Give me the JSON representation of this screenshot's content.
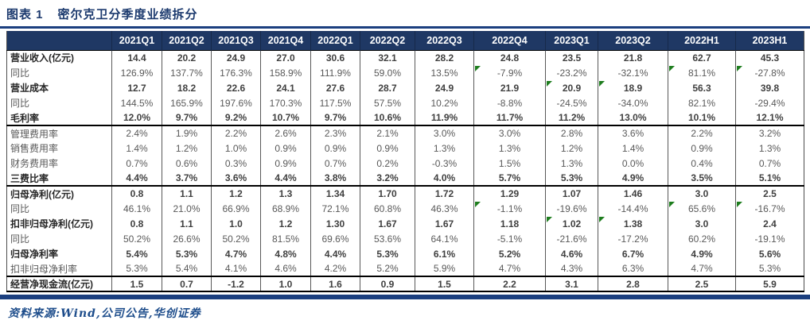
{
  "figure": {
    "label": "图表 1",
    "title": "密尔克卫分季度业绩拆分"
  },
  "source": {
    "text": "资料来源:Wind,公司公告,华创证券"
  },
  "colors": {
    "header_navy": "#1f3864",
    "rule_navy": "#1b3f7f",
    "flag_green": "#1e7d1e",
    "bold_text": "#404040",
    "regular_text": "#595959"
  },
  "table": {
    "columns": [
      "2021Q1",
      "2021Q2",
      "2021Q3",
      "2021Q4",
      "2022Q1",
      "2022Q2",
      "2022Q3",
      "2022Q4",
      "2023Q1",
      "2023Q2",
      "2022H1",
      "2023H1"
    ],
    "rows": [
      {
        "label": "营业收入(亿元)",
        "bold": true,
        "section_end": false,
        "flags": [],
        "values": [
          "14.4",
          "20.2",
          "24.9",
          "27.0",
          "30.6",
          "32.1",
          "28.2",
          "24.8",
          "23.5",
          "21.8",
          "62.7",
          "45.3"
        ]
      },
      {
        "label": "同比",
        "bold": false,
        "section_end": false,
        "flags": [
          7,
          10,
          11
        ],
        "values": [
          "126.9%",
          "137.7%",
          "176.3%",
          "158.9%",
          "111.9%",
          "59.0%",
          "13.5%",
          "-7.9%",
          "-23.2%",
          "-32.1%",
          "81.1%",
          "-27.8%"
        ]
      },
      {
        "label": "营业成本",
        "bold": true,
        "section_end": false,
        "flags": [
          8,
          9
        ],
        "values": [
          "12.7",
          "18.2",
          "22.6",
          "24.1",
          "27.6",
          "28.7",
          "24.9",
          "21.9",
          "20.9",
          "18.9",
          "56.3",
          "39.8"
        ]
      },
      {
        "label": "同比",
        "bold": false,
        "section_end": false,
        "flags": [],
        "values": [
          "144.5%",
          "165.9%",
          "197.6%",
          "170.3%",
          "117.5%",
          "57.5%",
          "10.2%",
          "-8.8%",
          "-24.5%",
          "-34.0%",
          "82.1%",
          "-29.4%"
        ]
      },
      {
        "label": "毛利率",
        "bold": true,
        "section_end": true,
        "flags": [],
        "values": [
          "12.0%",
          "9.7%",
          "9.2%",
          "10.7%",
          "9.7%",
          "10.6%",
          "11.9%",
          "11.7%",
          "11.2%",
          "13.0%",
          "10.1%",
          "12.1%"
        ]
      },
      {
        "label": "管理费用率",
        "bold": false,
        "section_end": false,
        "flags": [],
        "values": [
          "2.4%",
          "1.9%",
          "2.2%",
          "2.6%",
          "2.3%",
          "2.1%",
          "3.0%",
          "3.0%",
          "2.8%",
          "3.6%",
          "2.2%",
          "3.2%"
        ]
      },
      {
        "label": "销售费用率",
        "bold": false,
        "section_end": false,
        "flags": [],
        "values": [
          "1.4%",
          "1.2%",
          "1.0%",
          "0.9%",
          "0.9%",
          "0.9%",
          "1.3%",
          "1.3%",
          "1.2%",
          "1.4%",
          "0.9%",
          "1.3%"
        ]
      },
      {
        "label": "财务费用率",
        "bold": false,
        "section_end": false,
        "flags": [],
        "values": [
          "0.7%",
          "0.6%",
          "0.3%",
          "0.9%",
          "0.7%",
          "0.2%",
          "-0.3%",
          "1.5%",
          "1.3%",
          "0.0%",
          "0.4%",
          "0.7%"
        ]
      },
      {
        "label": "三费比率",
        "bold": true,
        "section_end": true,
        "flags": [],
        "values": [
          "4.4%",
          "3.7%",
          "3.6%",
          "4.4%",
          "3.8%",
          "3.2%",
          "4.0%",
          "5.7%",
          "5.3%",
          "4.9%",
          "3.5%",
          "5.1%"
        ]
      },
      {
        "label": "归母净利(亿元)",
        "bold": true,
        "section_end": false,
        "flags": [],
        "values": [
          "0.8",
          "1.1",
          "1.2",
          "1.3",
          "1.34",
          "1.70",
          "1.72",
          "1.29",
          "1.07",
          "1.46",
          "3.0",
          "2.5"
        ]
      },
      {
        "label": "同比",
        "bold": false,
        "section_end": false,
        "flags": [
          7,
          10,
          11
        ],
        "values": [
          "46.1%",
          "21.0%",
          "66.9%",
          "68.9%",
          "72.1%",
          "60.8%",
          "46.3%",
          "-1.1%",
          "-19.6%",
          "-14.4%",
          "65.6%",
          "-16.7%"
        ]
      },
      {
        "label": "扣非归母净利(亿元)",
        "bold": true,
        "section_end": false,
        "flags": [
          8,
          9
        ],
        "values": [
          "0.8",
          "1.1",
          "1.0",
          "1.2",
          "1.30",
          "1.67",
          "1.67",
          "1.18",
          "1.02",
          "1.38",
          "3.0",
          "2.4"
        ]
      },
      {
        "label": "同比",
        "bold": false,
        "section_end": false,
        "flags": [],
        "values": [
          "50.2%",
          "26.6%",
          "50.2%",
          "81.5%",
          "69.6%",
          "53.6%",
          "64.1%",
          "-5.1%",
          "-21.6%",
          "-17.2%",
          "60.2%",
          "-19.1%"
        ]
      },
      {
        "label": "归母净利率",
        "bold": true,
        "section_end": false,
        "flags": [],
        "values": [
          "5.4%",
          "5.3%",
          "4.7%",
          "4.8%",
          "4.4%",
          "5.3%",
          "6.1%",
          "5.2%",
          "4.6%",
          "6.7%",
          "4.9%",
          "5.6%"
        ]
      },
      {
        "label": "扣非归母净利率",
        "bold": false,
        "section_end": true,
        "flags": [],
        "values": [
          "5.3%",
          "5.4%",
          "4.1%",
          "4.6%",
          "4.2%",
          "5.2%",
          "5.9%",
          "4.7%",
          "4.3%",
          "6.3%",
          "4.7%",
          "5.3%"
        ]
      },
      {
        "label": "经营净现金流(亿元)",
        "bold": true,
        "section_end": false,
        "flags": [],
        "values": [
          "1.5",
          "0.7",
          "-1.2",
          "1.0",
          "1.6",
          "0.9",
          "1.5",
          "2.2",
          "3.1",
          "2.8",
          "2.5",
          "5.9"
        ]
      }
    ]
  }
}
